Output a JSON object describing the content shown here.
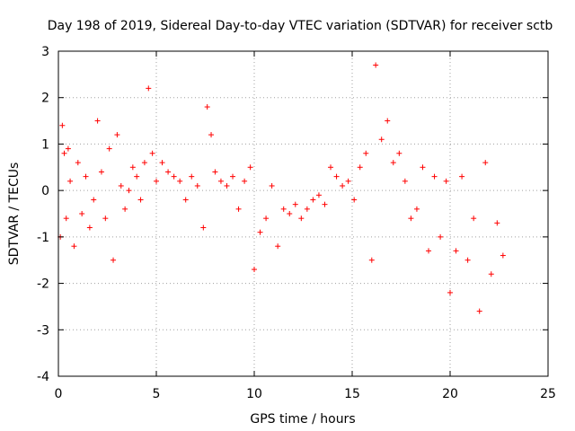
{
  "chart_data": {
    "type": "scatter",
    "title": "Day 198 of 2019, Sidereal Day-to-day VTEC variation (SDTVAR) for receiver sctb",
    "xlabel": "GPS time / hours",
    "ylabel": "SDTVAR / TECUs",
    "xlim": [
      0,
      25
    ],
    "ylim": [
      -4,
      3
    ],
    "x_ticks": [
      0,
      5,
      10,
      15,
      20,
      25
    ],
    "y_ticks": [
      -4,
      -3,
      -2,
      -1,
      0,
      1,
      2,
      3
    ],
    "x_tick_labels": [
      "0",
      "5",
      "10",
      "15",
      "20",
      "25"
    ],
    "y_tick_labels": [
      "-4",
      "-3",
      "-2",
      "-1",
      "0",
      "1",
      "2",
      "3"
    ],
    "grid": true,
    "marker": "+",
    "color": "#ff0000",
    "x_data_range": [
      0.1,
      22.9
    ],
    "series": [
      {
        "name": "SDTVAR",
        "x": [
          0.1,
          0.2,
          0.3,
          0.4,
          0.5,
          0.6,
          0.8,
          1.0,
          1.2,
          1.4,
          1.6,
          1.8,
          2.0,
          2.2,
          2.4,
          2.6,
          2.8,
          3.0,
          3.2,
          3.4,
          3.6,
          3.8,
          4.0,
          4.2,
          4.4,
          4.6,
          4.8,
          5.0,
          5.3,
          5.6,
          5.9,
          6.2,
          6.5,
          6.8,
          7.1,
          7.4,
          7.6,
          7.8,
          8.0,
          8.3,
          8.6,
          8.9,
          9.2,
          9.5,
          9.8,
          10.0,
          10.3,
          10.6,
          10.9,
          11.2,
          11.5,
          11.8,
          12.1,
          12.4,
          12.7,
          13.0,
          13.3,
          13.6,
          13.9,
          14.2,
          14.5,
          14.8,
          15.1,
          15.4,
          15.7,
          16.0,
          16.2,
          16.5,
          16.8,
          17.1,
          17.4,
          17.7,
          18.0,
          18.3,
          18.6,
          18.9,
          19.2,
          19.5,
          19.8,
          20.0,
          20.3,
          20.6,
          20.9,
          21.2,
          21.5,
          21.8,
          22.1,
          22.4,
          22.7
        ],
        "y": [
          -1.0,
          1.4,
          0.8,
          -0.6,
          0.9,
          0.2,
          -1.2,
          0.6,
          -0.5,
          0.3,
          -0.8,
          -0.2,
          1.5,
          0.4,
          -0.6,
          0.9,
          -1.5,
          1.2,
          0.1,
          -0.4,
          0.0,
          0.5,
          0.3,
          -0.2,
          0.6,
          2.2,
          0.8,
          0.2,
          0.6,
          0.4,
          0.3,
          0.2,
          -0.2,
          0.3,
          0.1,
          -0.8,
          1.8,
          1.2,
          0.4,
          0.2,
          0.1,
          0.3,
          -0.4,
          0.2,
          0.5,
          -1.7,
          -0.9,
          -0.6,
          0.1,
          -1.2,
          -0.4,
          -0.5,
          -0.3,
          -0.6,
          -0.4,
          -0.2,
          -0.1,
          -0.3,
          0.5,
          0.3,
          0.1,
          0.2,
          -0.2,
          0.5,
          0.8,
          -1.5,
          2.7,
          1.1,
          1.5,
          0.6,
          0.8,
          0.2,
          -0.6,
          -0.4,
          0.5,
          -1.3,
          0.3,
          -1.0,
          0.2,
          -2.2,
          -1.3,
          0.3,
          -1.5,
          -0.6,
          -2.6,
          0.6,
          -1.8,
          -0.7,
          -1.4
        ]
      }
    ]
  }
}
